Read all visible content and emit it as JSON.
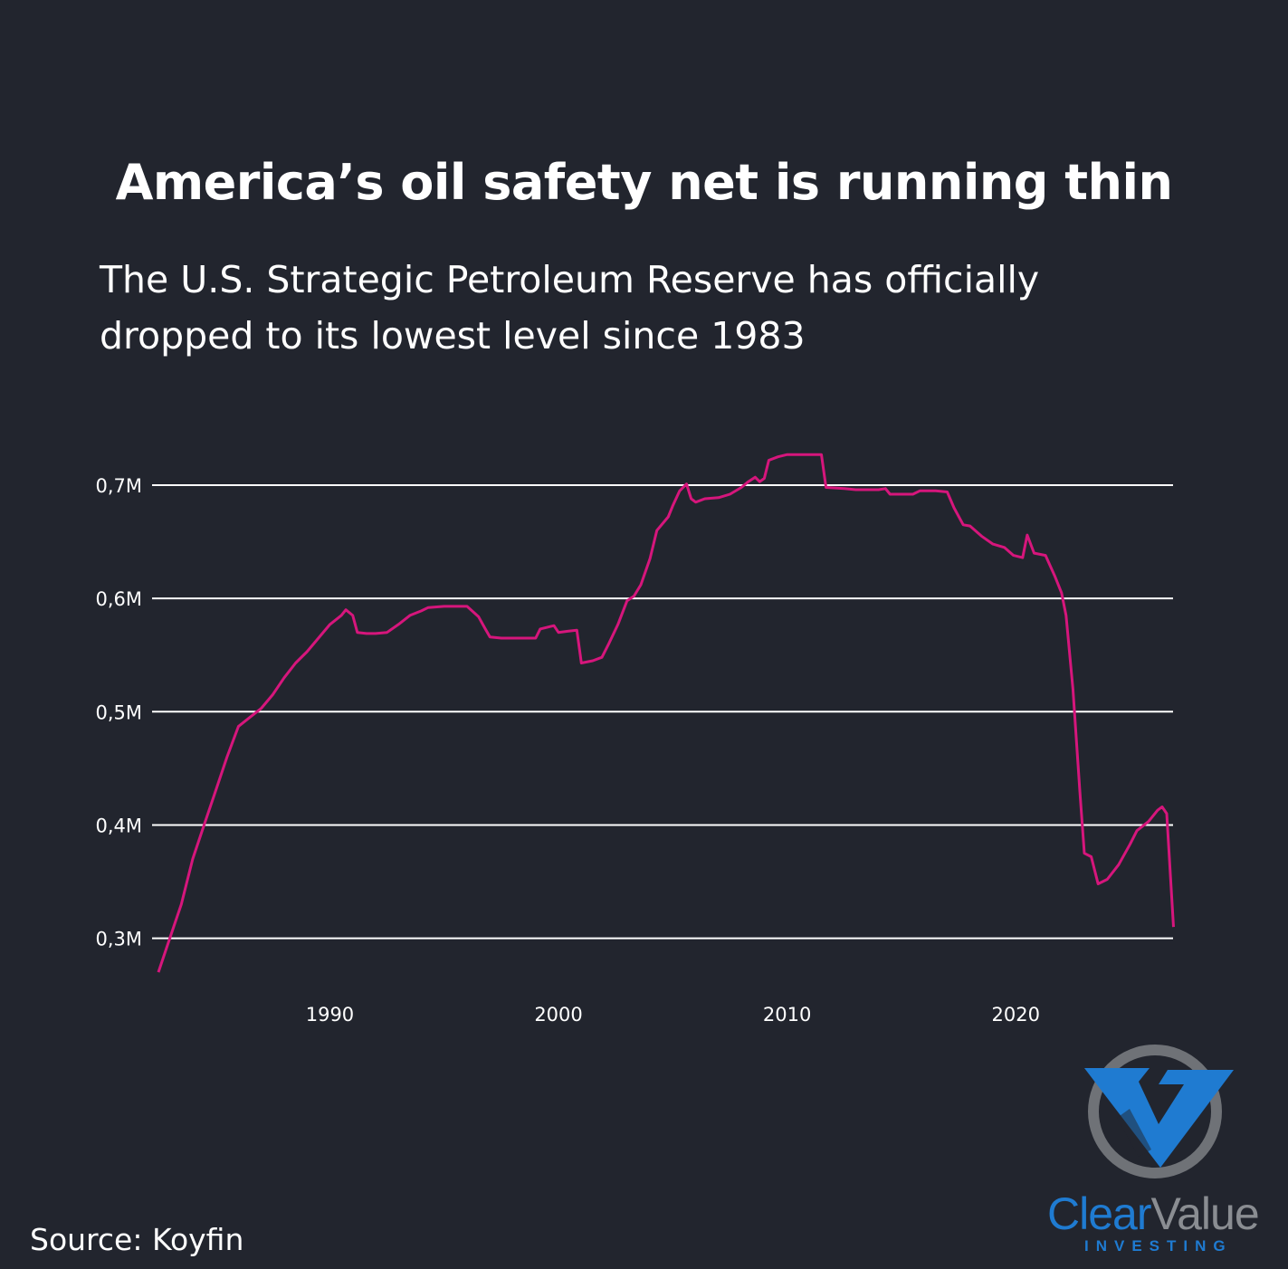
{
  "title": "America’s oil safety net is running thin",
  "subtitle": "The U.S. Strategic Petroleum Reserve has officially dropped to its lowest level since 1983",
  "source": "Source: Koyfin",
  "logo": {
    "word_part1": "Clear",
    "word_part2": "Value",
    "tagline": "INVESTING",
    "colors": {
      "blue": "#1f7bd1",
      "gray": "#8a8d92"
    }
  },
  "colors": {
    "background": "#22252e",
    "line": "#d6167c",
    "grid": "#ffffff",
    "text": "#ffffff"
  },
  "chart_data": {
    "type": "line",
    "title": "",
    "xlabel": "",
    "ylabel": "",
    "x_ticks": [
      1990,
      2000,
      2010,
      2020
    ],
    "y_ticks": [
      300000,
      400000,
      500000,
      600000,
      700000
    ],
    "y_tick_labels": [
      "0,3M",
      "0,4M",
      "0,5M",
      "0,6M",
      "0,7M"
    ],
    "xlim": [
      1982.4,
      2027.0
    ],
    "ylim": [
      0.26,
      0.73
    ],
    "y_units": "millions",
    "grid": "horizontal",
    "legend": "none",
    "series": [
      {
        "color": "#d6167c",
        "points": [
          [
            1982.5,
            0.27
          ],
          [
            1983.0,
            0.3
          ],
          [
            1983.5,
            0.33
          ],
          [
            1984.0,
            0.37
          ],
          [
            1984.5,
            0.4
          ],
          [
            1985.0,
            0.43
          ],
          [
            1985.5,
            0.46
          ],
          [
            1986.0,
            0.487
          ],
          [
            1986.5,
            0.495
          ],
          [
            1987.0,
            0.503
          ],
          [
            1987.5,
            0.515
          ],
          [
            1988.0,
            0.53
          ],
          [
            1988.5,
            0.543
          ],
          [
            1989.0,
            0.553
          ],
          [
            1989.5,
            0.565
          ],
          [
            1990.0,
            0.577
          ],
          [
            1990.5,
            0.585
          ],
          [
            1990.7,
            0.59
          ],
          [
            1991.0,
            0.585
          ],
          [
            1991.2,
            0.57
          ],
          [
            1991.6,
            0.569
          ],
          [
            1992.0,
            0.569
          ],
          [
            1992.5,
            0.57
          ],
          [
            1993.0,
            0.577
          ],
          [
            1993.5,
            0.585
          ],
          [
            1994.0,
            0.589
          ],
          [
            1994.3,
            0.592
          ],
          [
            1995.0,
            0.593
          ],
          [
            1996.0,
            0.593
          ],
          [
            1996.5,
            0.584
          ],
          [
            1996.8,
            0.573
          ],
          [
            1997.0,
            0.566
          ],
          [
            1997.5,
            0.565
          ],
          [
            1998.0,
            0.565
          ],
          [
            1999.0,
            0.565
          ],
          [
            1999.2,
            0.573
          ],
          [
            1999.8,
            0.576
          ],
          [
            2000.0,
            0.57
          ],
          [
            2000.4,
            0.571
          ],
          [
            2000.8,
            0.572
          ],
          [
            2001.0,
            0.543
          ],
          [
            2001.5,
            0.545
          ],
          [
            2001.9,
            0.548
          ],
          [
            2002.2,
            0.56
          ],
          [
            2002.6,
            0.577
          ],
          [
            2003.0,
            0.598
          ],
          [
            2003.3,
            0.602
          ],
          [
            2003.6,
            0.612
          ],
          [
            2004.0,
            0.635
          ],
          [
            2004.3,
            0.66
          ],
          [
            2004.8,
            0.672
          ],
          [
            2005.0,
            0.682
          ],
          [
            2005.3,
            0.695
          ],
          [
            2005.6,
            0.701
          ],
          [
            2005.8,
            0.688
          ],
          [
            2006.0,
            0.685
          ],
          [
            2006.4,
            0.688
          ],
          [
            2007.0,
            0.689
          ],
          [
            2007.5,
            0.692
          ],
          [
            2008.0,
            0.698
          ],
          [
            2008.3,
            0.703
          ],
          [
            2008.6,
            0.707
          ],
          [
            2008.8,
            0.703
          ],
          [
            2009.0,
            0.706
          ],
          [
            2009.2,
            0.722
          ],
          [
            2009.6,
            0.725
          ],
          [
            2010.0,
            0.727
          ],
          [
            2011.0,
            0.727
          ],
          [
            2011.5,
            0.727
          ],
          [
            2011.7,
            0.698
          ],
          [
            2012.5,
            0.697
          ],
          [
            2013.0,
            0.696
          ],
          [
            2014.0,
            0.696
          ],
          [
            2014.3,
            0.697
          ],
          [
            2014.5,
            0.692
          ],
          [
            2015.0,
            0.692
          ],
          [
            2015.5,
            0.692
          ],
          [
            2015.8,
            0.695
          ],
          [
            2016.5,
            0.695
          ],
          [
            2017.0,
            0.694
          ],
          [
            2017.3,
            0.68
          ],
          [
            2017.7,
            0.665
          ],
          [
            2018.0,
            0.664
          ],
          [
            2018.5,
            0.655
          ],
          [
            2019.0,
            0.648
          ],
          [
            2019.5,
            0.645
          ],
          [
            2019.9,
            0.638
          ],
          [
            2020.3,
            0.636
          ],
          [
            2020.5,
            0.656
          ],
          [
            2020.8,
            0.64
          ],
          [
            2021.3,
            0.638
          ],
          [
            2021.7,
            0.62
          ],
          [
            2022.0,
            0.605
          ],
          [
            2022.2,
            0.585
          ],
          [
            2022.5,
            0.52
          ],
          [
            2022.8,
            0.43
          ],
          [
            2023.0,
            0.375
          ],
          [
            2023.3,
            0.372
          ],
          [
            2023.6,
            0.348
          ],
          [
            2024.0,
            0.352
          ],
          [
            2024.5,
            0.365
          ],
          [
            2025.0,
            0.383
          ],
          [
            2025.3,
            0.395
          ],
          [
            2025.8,
            0.403
          ],
          [
            2026.2,
            0.413
          ],
          [
            2026.4,
            0.416
          ],
          [
            2026.6,
            0.41
          ],
          [
            2026.9,
            0.31
          ]
        ]
      }
    ]
  }
}
